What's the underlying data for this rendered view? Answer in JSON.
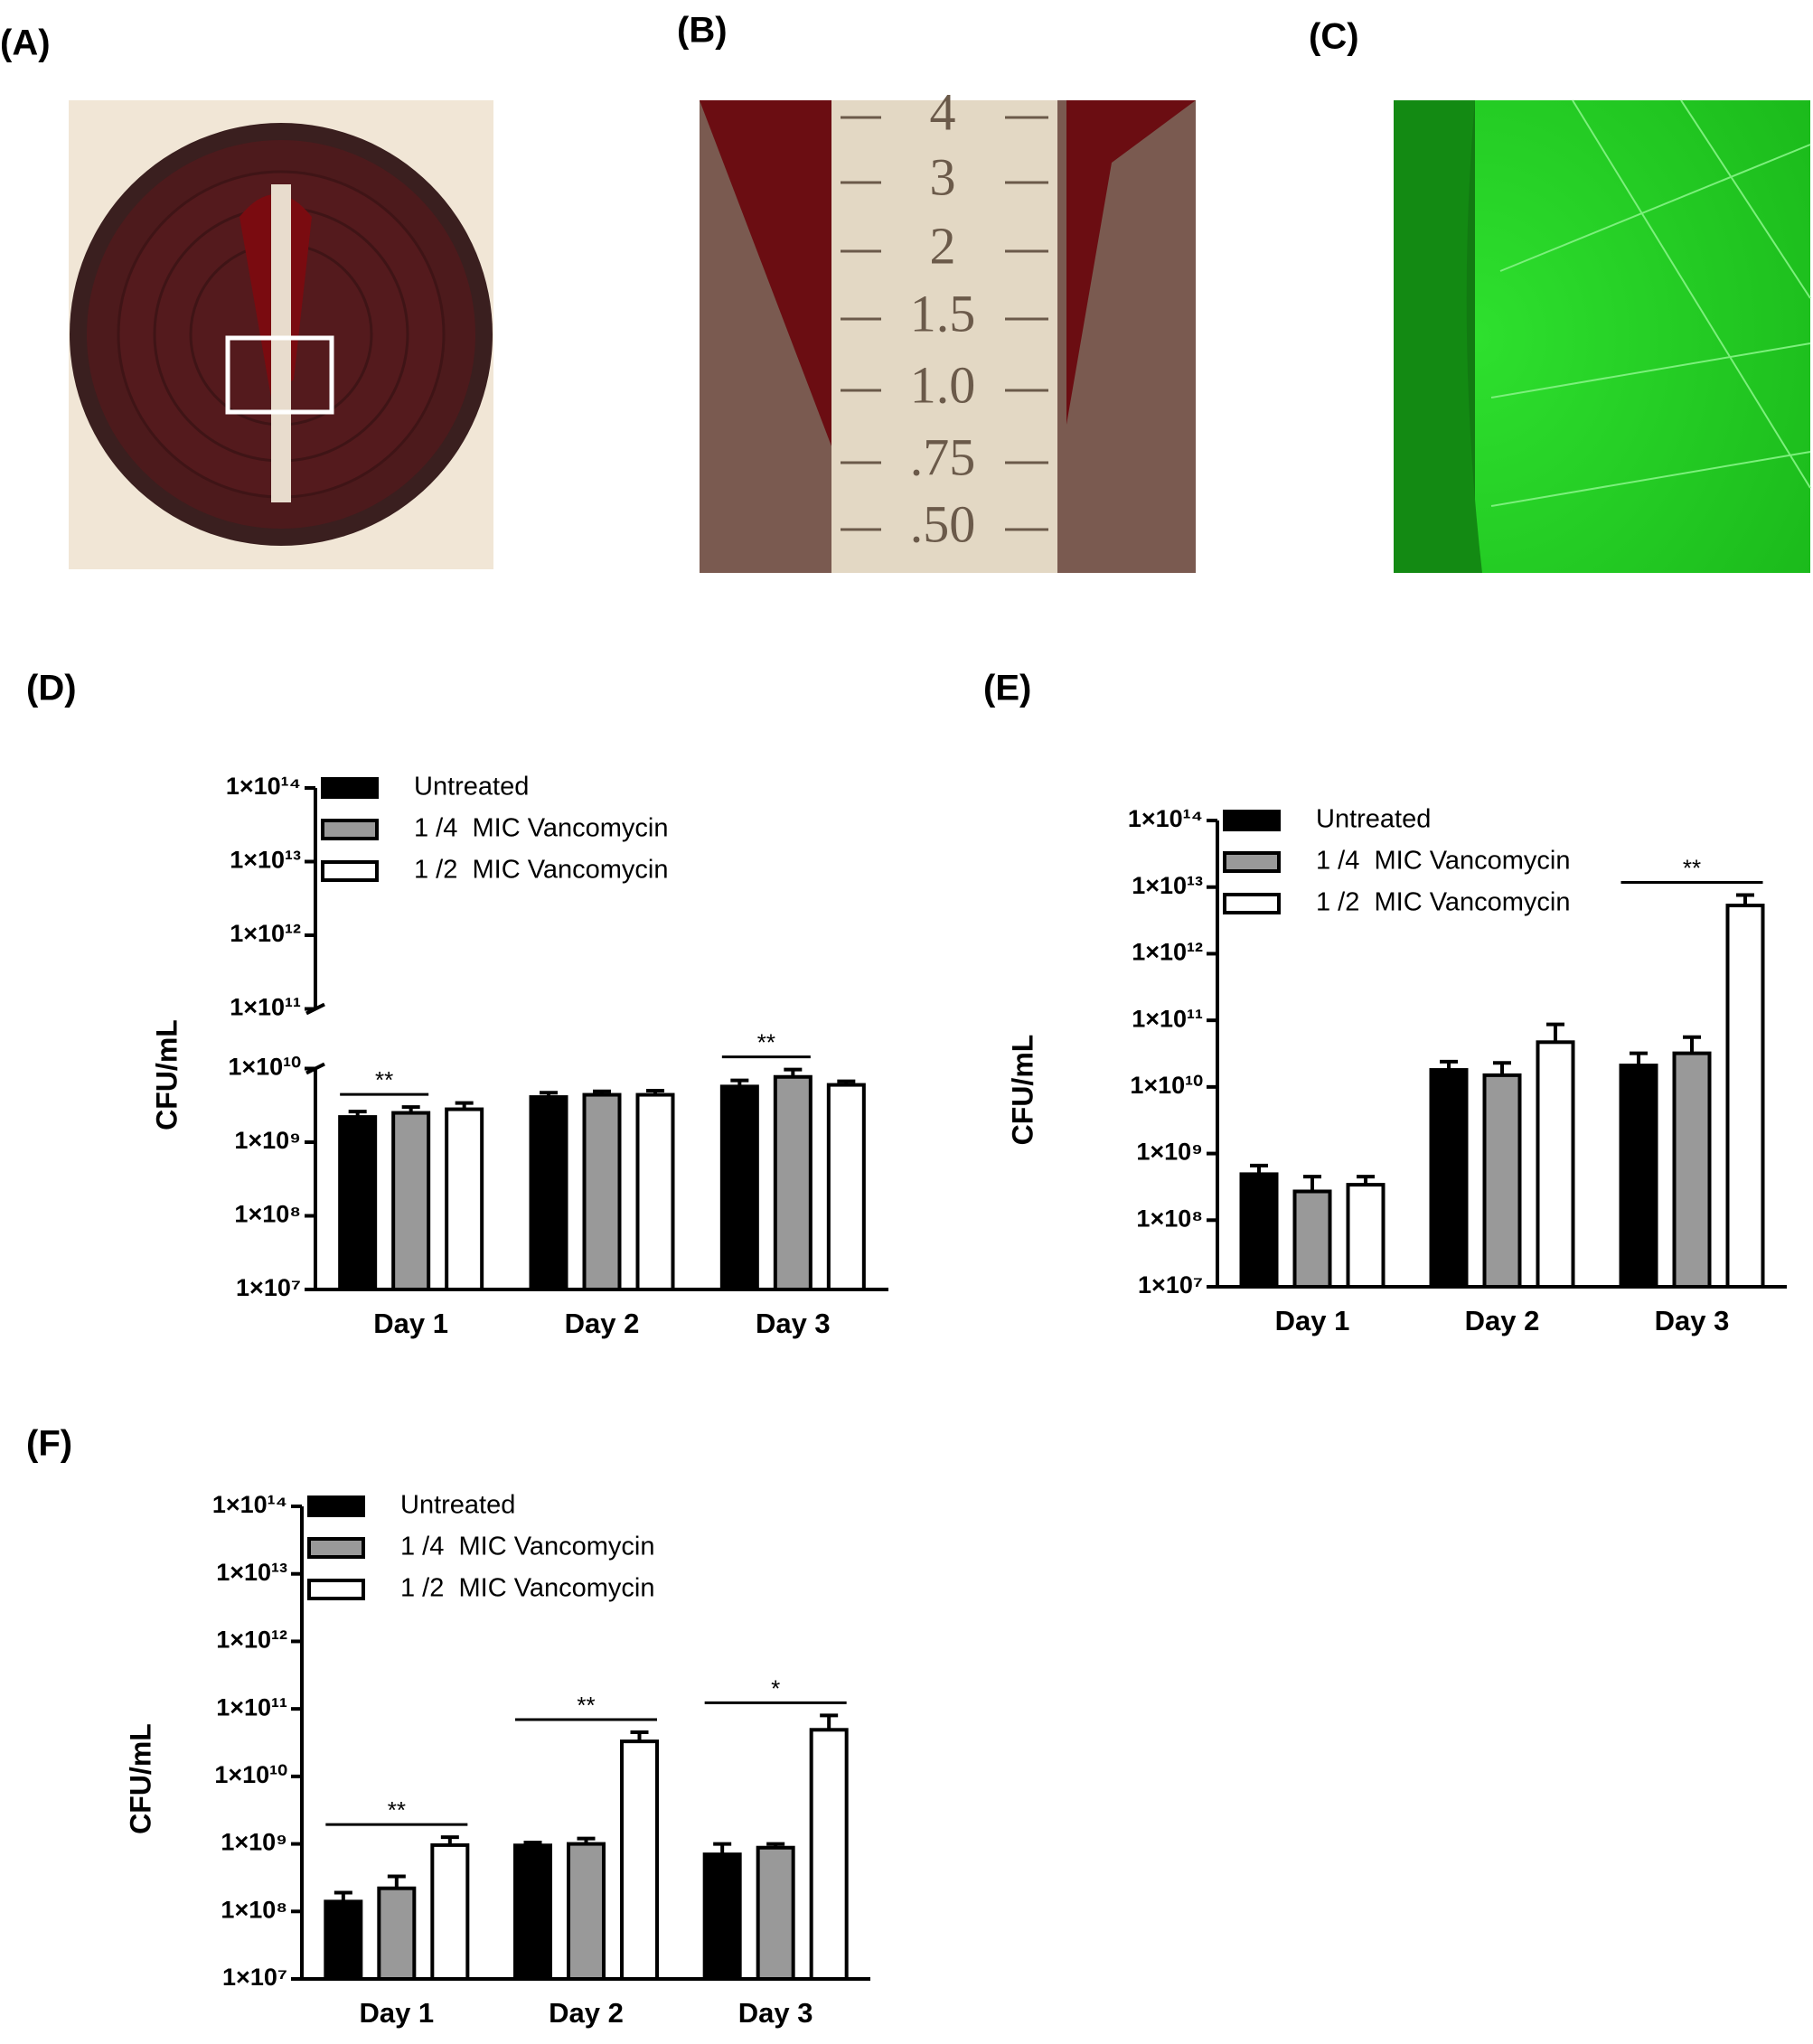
{
  "panel_labels": [
    "(A)",
    "(B)",
    "(C)",
    "(D)",
    "(E)",
    "(F)"
  ],
  "photo_b_scale": [
    "4",
    "3",
    "2",
    "1.5",
    "1.0",
    ".75",
    ".50"
  ],
  "chart_data": [
    {
      "type": "bar",
      "log_y": true,
      "y_label": "CFU/mL",
      "legend": "upper left",
      "edgecolor": "#000000",
      "categories": [
        "Day 1",
        "Day 2",
        "Day 3"
      ],
      "series": [
        {
          "name": "Untreated",
          "color": "#000000",
          "values": [
            2200000000,
            4100000000,
            5700000000
          ],
          "errors": [
            400000000,
            600000000,
            1200000000
          ]
        },
        {
          "name": "1 /4  MIC Vancomycin",
          "color": "#999999",
          "values": [
            2500000000,
            4400000000,
            7700000000
          ],
          "errors": [
            500000000,
            500000000,
            2000000000
          ]
        },
        {
          "name": "1 /2  MIC Vancomycin",
          "color": "#ffffff",
          "values": [
            2800000000,
            4400000000,
            6000000000
          ],
          "errors": [
            600000000,
            600000000,
            700000000
          ]
        }
      ],
      "ylim": [
        10000000,
        100000000000000
      ],
      "axis_break": [
        10000000000,
        100000000000
      ],
      "yticks": [
        {
          "value": 10000000,
          "label": "1×10⁷"
        },
        {
          "value": 100000000,
          "label": "1×10⁸"
        },
        {
          "value": 1000000000,
          "label": "1×10⁹"
        },
        {
          "value": 10000000000,
          "label": "1×10¹⁰"
        },
        {
          "value": 100000000000,
          "label": "1×10¹¹"
        },
        {
          "value": 1000000000000,
          "label": "1×10¹²"
        },
        {
          "value": 10000000000000,
          "label": "1×10¹³"
        },
        {
          "value": 100000000000000,
          "label": "1×10¹⁴"
        }
      ],
      "significance": [
        {
          "text": "**",
          "category": 0,
          "series": [
            0,
            1
          ]
        },
        {
          "text": "**",
          "category": 2,
          "series": [
            0,
            1
          ]
        }
      ]
    },
    {
      "type": "bar",
      "log_y": true,
      "y_label": "CFU/mL",
      "legend": "upper left",
      "edgecolor": "#000000",
      "categories": [
        "Day 1",
        "Day 2",
        "Day 3"
      ],
      "series": [
        {
          "name": "Untreated",
          "color": "#000000",
          "values": [
            490000000,
            18000000000,
            21000000000
          ],
          "errors": [
            170000000,
            6000000000,
            11000000000
          ]
        },
        {
          "name": "1 /4  MIC Vancomycin",
          "color": "#999999",
          "values": [
            270000000,
            15000000000,
            32000000000
          ],
          "errors": [
            180000000,
            8000000000,
            24000000000
          ]
        },
        {
          "name": "1 /2  MIC Vancomycin",
          "color": "#ffffff",
          "values": [
            340000000,
            47000000000,
            5300000000000
          ],
          "errors": [
            110000000,
            40000000000,
            2300000000000
          ]
        }
      ],
      "ylim": [
        10000000,
        100000000000000
      ],
      "yticks": [
        {
          "value": 10000000,
          "label": "1×10⁷"
        },
        {
          "value": 100000000,
          "label": "1×10⁸"
        },
        {
          "value": 1000000000,
          "label": "1×10⁹"
        },
        {
          "value": 10000000000,
          "label": "1×10¹⁰"
        },
        {
          "value": 100000000000,
          "label": "1×10¹¹"
        },
        {
          "value": 1000000000000,
          "label": "1×10¹²"
        },
        {
          "value": 10000000000000,
          "label": "1×10¹³"
        },
        {
          "value": 100000000000000,
          "label": "1×10¹⁴"
        }
      ],
      "significance": [
        {
          "text": "**",
          "category": 2,
          "series": [
            0,
            2
          ]
        }
      ]
    },
    {
      "type": "bar",
      "log_y": true,
      "y_label": "CFU/mL",
      "legend": "upper left",
      "edgecolor": "#000000",
      "categories": [
        "Day 1",
        "Day 2",
        "Day 3"
      ],
      "series": [
        {
          "name": "Untreated",
          "color": "#000000",
          "values": [
            140000000,
            950000000,
            700000000
          ],
          "errors": [
            50000000,
            100000000,
            300000000
          ]
        },
        {
          "name": "1 /4  MIC Vancomycin",
          "color": "#999999",
          "values": [
            220000000,
            1000000000,
            880000000
          ],
          "errors": [
            110000000,
            200000000,
            120000000
          ]
        },
        {
          "name": "1 /2  MIC Vancomycin",
          "color": "#ffffff",
          "values": [
            960000000,
            33000000000,
            49000000000
          ],
          "errors": [
            300000000,
            12000000000,
            31000000000
          ]
        }
      ],
      "ylim": [
        10000000,
        100000000000000
      ],
      "yticks": [
        {
          "value": 10000000,
          "label": "1×10⁷"
        },
        {
          "value": 100000000,
          "label": "1×10⁸"
        },
        {
          "value": 1000000000,
          "label": "1×10⁹"
        },
        {
          "value": 10000000000,
          "label": "1×10¹⁰"
        },
        {
          "value": 100000000000,
          "label": "1×10¹¹"
        },
        {
          "value": 1000000000000,
          "label": "1×10¹²"
        },
        {
          "value": 10000000000000,
          "label": "1×10¹³"
        },
        {
          "value": 100000000000000,
          "label": "1×10¹⁴"
        }
      ],
      "significance": [
        {
          "text": "**",
          "category": 0,
          "series": [
            0,
            2
          ]
        },
        {
          "text": "**",
          "category": 1,
          "series": [
            0,
            2
          ]
        },
        {
          "text": "*",
          "category": 2,
          "series": [
            0,
            2
          ]
        }
      ]
    }
  ]
}
